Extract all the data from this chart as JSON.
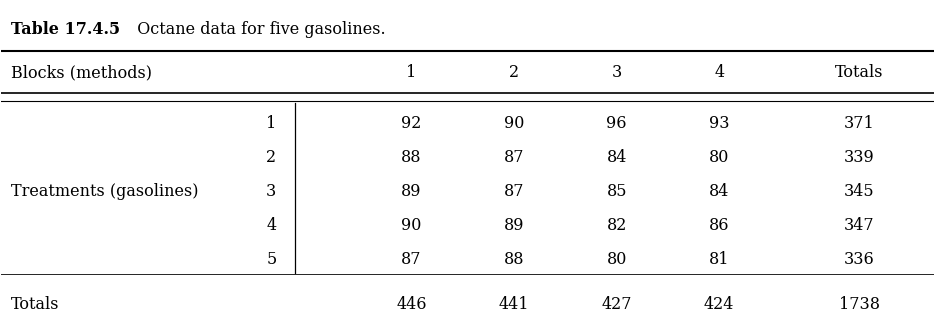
{
  "title_bold": "Table 17.4.5",
  "title_normal": "  Octane data for five gasolines.",
  "col_header_label": "Blocks (methods)",
  "col_headers": [
    "1",
    "2",
    "3",
    "4",
    "Totals"
  ],
  "row_group_label": "Treatments (gasolines)",
  "row_numbers": [
    "1",
    "2",
    "3",
    "4",
    "5"
  ],
  "data": [
    [
      92,
      90,
      96,
      93,
      371
    ],
    [
      88,
      87,
      84,
      80,
      339
    ],
    [
      89,
      87,
      85,
      84,
      345
    ],
    [
      90,
      89,
      82,
      86,
      347
    ],
    [
      87,
      88,
      80,
      81,
      336
    ]
  ],
  "totals_row": [
    446,
    441,
    427,
    424,
    1738
  ],
  "totals_label": "Totals",
  "bg_color": "#ffffff",
  "text_color": "#000000",
  "fontsize": 11.5
}
